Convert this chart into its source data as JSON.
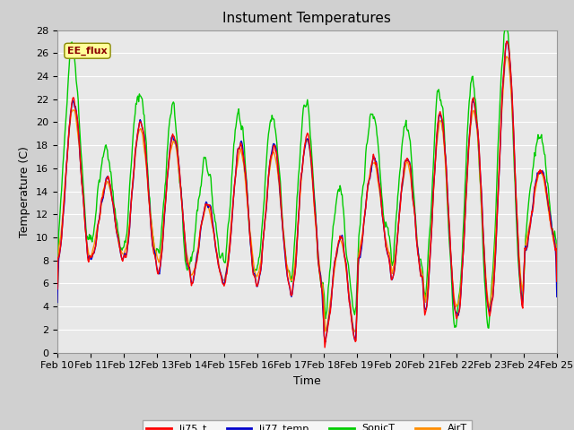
{
  "title": "Instument Temperatures",
  "xlabel": "Time",
  "ylabel": "Temperature (C)",
  "ylim": [
    0,
    28
  ],
  "yticks": [
    0,
    2,
    4,
    6,
    8,
    10,
    12,
    14,
    16,
    18,
    20,
    22,
    24,
    26,
    28
  ],
  "xtick_labels": [
    "Feb 10",
    "Feb 11",
    "Feb 12",
    "Feb 13",
    "Feb 14",
    "Feb 15",
    "Feb 16",
    "Feb 17",
    "Feb 18",
    "Feb 19",
    "Feb 20",
    "Feb 21",
    "Feb 22",
    "Feb 23",
    "Feb 24",
    "Feb 25"
  ],
  "annotation_text": "EE_flux",
  "annotation_color": "#8B0000",
  "annotation_bg": "#FFFF99",
  "annotation_edge": "#888800",
  "line_colors": {
    "li75_t": "#FF0000",
    "li77_temp": "#0000CC",
    "SonicT": "#00CC00",
    "AirT": "#FF8C00"
  },
  "fig_bg": "#D0D0D0",
  "plot_bg": "#E8E8E8",
  "grid_color": "#FFFFFF",
  "title_fontsize": 11,
  "axis_label_fontsize": 9,
  "tick_fontsize": 8,
  "linewidth": 1.0
}
